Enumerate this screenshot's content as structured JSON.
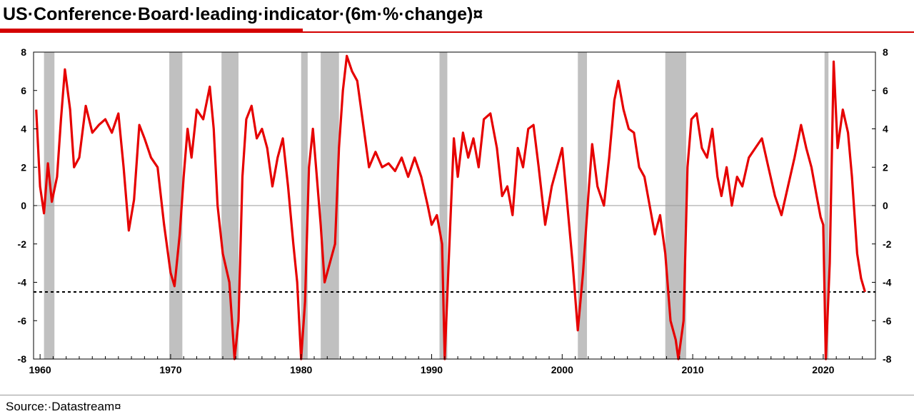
{
  "header": {
    "title": "US·Conference·Board·leading·indicator·(6m·%·change)¤"
  },
  "footer": {
    "source": "Source:·Datastream¤"
  },
  "colors": {
    "series": "#e60000",
    "recession": "#c0c0c0",
    "accent": "#d40000"
  },
  "chart_data": {
    "type": "line",
    "title": "US·Conference·Board·leading·indicator·(6m·%·change)¤",
    "xlabel": "",
    "ylabel": "",
    "xlim": [
      1959.5,
      2024.0
    ],
    "ylim": [
      -8,
      8
    ],
    "x_ticks": [
      "1960",
      "1970",
      "1980",
      "1990",
      "2000",
      "2010",
      "2020"
    ],
    "y_ticks": [
      "8",
      "6",
      "4",
      "2",
      "0",
      "-2",
      "-4",
      "-6",
      "-8"
    ],
    "grid": false,
    "dual_y_axis": true,
    "reference_lines": [
      {
        "value": 0,
        "style": "solid"
      },
      {
        "value": -4.5,
        "style": "dotted"
      }
    ],
    "recessions": [
      [
        1960.3,
        1961.1
      ],
      [
        1969.9,
        1970.9
      ],
      [
        1973.9,
        1975.2
      ],
      [
        1980.0,
        1980.5
      ],
      [
        1981.5,
        1982.9
      ],
      [
        1990.6,
        1991.2
      ],
      [
        2001.2,
        2001.9
      ],
      [
        2007.9,
        2009.5
      ],
      [
        2020.1,
        2020.4
      ]
    ],
    "series": [
      {
        "values": [
          [
            1959.7,
            5.0
          ],
          [
            1960.0,
            1.0
          ],
          [
            1960.3,
            -0.4
          ],
          [
            1960.6,
            2.2
          ],
          [
            1960.9,
            0.2
          ],
          [
            1961.3,
            1.5
          ],
          [
            1961.6,
            4.5
          ],
          [
            1961.9,
            7.1
          ],
          [
            1962.3,
            5.0
          ],
          [
            1962.6,
            2.0
          ],
          [
            1963.0,
            2.5
          ],
          [
            1963.5,
            5.2
          ],
          [
            1964.0,
            3.8
          ],
          [
            1964.5,
            4.2
          ],
          [
            1965.0,
            4.5
          ],
          [
            1965.5,
            3.8
          ],
          [
            1966.0,
            4.8
          ],
          [
            1966.4,
            2.0
          ],
          [
            1966.8,
            -1.3
          ],
          [
            1967.2,
            0.3
          ],
          [
            1967.6,
            4.2
          ],
          [
            1968.0,
            3.5
          ],
          [
            1968.5,
            2.5
          ],
          [
            1969.0,
            2.0
          ],
          [
            1969.5,
            -1.0
          ],
          [
            1970.0,
            -3.5
          ],
          [
            1970.3,
            -4.2
          ],
          [
            1970.7,
            -1.5
          ],
          [
            1971.0,
            1.5
          ],
          [
            1971.3,
            4.0
          ],
          [
            1971.6,
            2.5
          ],
          [
            1972.0,
            5.0
          ],
          [
            1972.5,
            4.5
          ],
          [
            1973.0,
            6.2
          ],
          [
            1973.3,
            4.0
          ],
          [
            1973.6,
            0.0
          ],
          [
            1974.0,
            -2.5
          ],
          [
            1974.5,
            -4.0
          ],
          [
            1974.9,
            -8.0
          ],
          [
            1975.2,
            -6.0
          ],
          [
            1975.5,
            1.5
          ],
          [
            1975.8,
            4.5
          ],
          [
            1976.2,
            5.2
          ],
          [
            1976.6,
            3.5
          ],
          [
            1977.0,
            4.0
          ],
          [
            1977.4,
            3.0
          ],
          [
            1977.8,
            1.0
          ],
          [
            1978.2,
            2.5
          ],
          [
            1978.6,
            3.5
          ],
          [
            1979.0,
            1.0
          ],
          [
            1979.4,
            -2.0
          ],
          [
            1979.7,
            -4.0
          ],
          [
            1980.0,
            -8.0
          ],
          [
            1980.3,
            -5.0
          ],
          [
            1980.6,
            2.0
          ],
          [
            1980.9,
            4.0
          ],
          [
            1981.2,
            1.5
          ],
          [
            1981.5,
            -1.0
          ],
          [
            1981.8,
            -4.0
          ],
          [
            1982.2,
            -3.0
          ],
          [
            1982.6,
            -2.0
          ],
          [
            1982.9,
            3.0
          ],
          [
            1983.2,
            6.0
          ],
          [
            1983.5,
            7.8
          ],
          [
            1983.9,
            7.0
          ],
          [
            1984.3,
            6.5
          ],
          [
            1984.8,
            4.0
          ],
          [
            1985.2,
            2.0
          ],
          [
            1985.7,
            2.8
          ],
          [
            1986.2,
            2.0
          ],
          [
            1986.7,
            2.2
          ],
          [
            1987.2,
            1.8
          ],
          [
            1987.7,
            2.5
          ],
          [
            1988.2,
            1.5
          ],
          [
            1988.7,
            2.5
          ],
          [
            1989.2,
            1.5
          ],
          [
            1989.7,
            0.0
          ],
          [
            1990.0,
            -1.0
          ],
          [
            1990.4,
            -0.5
          ],
          [
            1990.8,
            -2.0
          ],
          [
            1991.0,
            -8.0
          ],
          [
            1991.3,
            -3.0
          ],
          [
            1991.7,
            3.5
          ],
          [
            1992.0,
            1.5
          ],
          [
            1992.4,
            3.8
          ],
          [
            1992.8,
            2.5
          ],
          [
            1993.2,
            3.5
          ],
          [
            1993.6,
            2.0
          ],
          [
            1994.0,
            4.5
          ],
          [
            1994.5,
            4.8
          ],
          [
            1995.0,
            3.0
          ],
          [
            1995.4,
            0.5
          ],
          [
            1995.8,
            1.0
          ],
          [
            1996.2,
            -0.5
          ],
          [
            1996.6,
            3.0
          ],
          [
            1997.0,
            2.0
          ],
          [
            1997.4,
            4.0
          ],
          [
            1997.8,
            4.2
          ],
          [
            1998.2,
            2.0
          ],
          [
            1998.7,
            -1.0
          ],
          [
            1999.2,
            1.0
          ],
          [
            1999.6,
            2.0
          ],
          [
            2000.0,
            3.0
          ],
          [
            2000.4,
            0.0
          ],
          [
            2000.8,
            -3.0
          ],
          [
            2001.2,
            -6.5
          ],
          [
            2001.6,
            -3.5
          ],
          [
            2002.0,
            0.5
          ],
          [
            2002.3,
            3.2
          ],
          [
            2002.7,
            1.0
          ],
          [
            2003.2,
            0.0
          ],
          [
            2003.6,
            2.5
          ],
          [
            2004.0,
            5.5
          ],
          [
            2004.3,
            6.5
          ],
          [
            2004.7,
            5.0
          ],
          [
            2005.1,
            4.0
          ],
          [
            2005.5,
            3.8
          ],
          [
            2005.9,
            2.0
          ],
          [
            2006.3,
            1.5
          ],
          [
            2006.7,
            0.0
          ],
          [
            2007.1,
            -1.5
          ],
          [
            2007.5,
            -0.5
          ],
          [
            2007.9,
            -2.5
          ],
          [
            2008.3,
            -6.0
          ],
          [
            2008.7,
            -7.0
          ],
          [
            2008.9,
            -8.0
          ],
          [
            2009.3,
            -6.0
          ],
          [
            2009.6,
            2.0
          ],
          [
            2009.9,
            4.5
          ],
          [
            2010.3,
            4.8
          ],
          [
            2010.7,
            3.0
          ],
          [
            2011.1,
            2.5
          ],
          [
            2011.5,
            4.0
          ],
          [
            2011.9,
            1.5
          ],
          [
            2012.2,
            0.5
          ],
          [
            2012.6,
            2.0
          ],
          [
            2013.0,
            0.0
          ],
          [
            2013.4,
            1.5
          ],
          [
            2013.8,
            1.0
          ],
          [
            2014.3,
            2.5
          ],
          [
            2014.8,
            3.0
          ],
          [
            2015.3,
            3.5
          ],
          [
            2015.8,
            2.0
          ],
          [
            2016.3,
            0.5
          ],
          [
            2016.8,
            -0.5
          ],
          [
            2017.3,
            1.0
          ],
          [
            2017.8,
            2.5
          ],
          [
            2018.3,
            4.2
          ],
          [
            2018.7,
            3.0
          ],
          [
            2019.1,
            2.0
          ],
          [
            2019.5,
            0.5
          ],
          [
            2019.8,
            -0.6
          ],
          [
            2020.0,
            -1.0
          ],
          [
            2020.2,
            -8.0
          ],
          [
            2020.5,
            -3.0
          ],
          [
            2020.8,
            7.5
          ],
          [
            2021.1,
            3.0
          ],
          [
            2021.5,
            5.0
          ],
          [
            2021.9,
            3.8
          ],
          [
            2022.2,
            1.5
          ],
          [
            2022.6,
            -2.5
          ],
          [
            2022.9,
            -3.8
          ],
          [
            2023.2,
            -4.5
          ]
        ]
      }
    ]
  }
}
